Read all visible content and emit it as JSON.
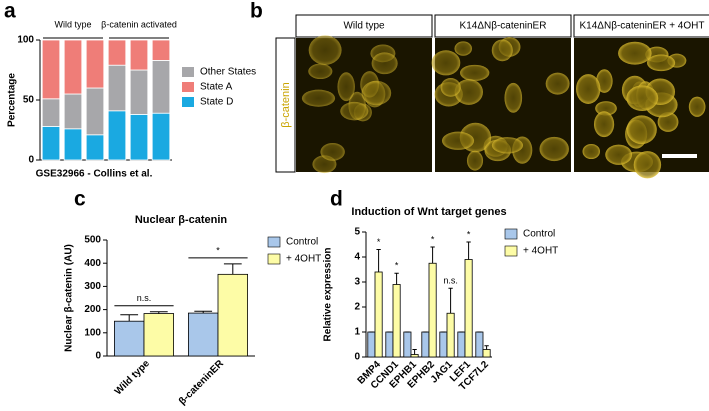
{
  "panel_labels": [
    "a",
    "b",
    "c",
    "d"
  ],
  "images": {
    "ylabel": "β-catenin",
    "titles": [
      "Wild type",
      "K14ΔNβ-cateninER",
      "K14ΔNβ-cateninER + 4OHT"
    ]
  },
  "chart_data": [
    {
      "type": "stacked_bar",
      "xlabel": "GSE32966 - Collins et al.",
      "ylabel": "Percentage",
      "groups": [
        "Wild type",
        "β-catenin activated"
      ],
      "categories": [
        null,
        null,
        null,
        null,
        null,
        null
      ],
      "series": [
        {
          "name": "Other States",
          "color": "#a7a7aa",
          "values": [
            23,
            29,
            39,
            38,
            37,
            44
          ]
        },
        {
          "name": "State A",
          "color": "#ef7d78",
          "values": [
            49,
            45,
            40,
            21,
            25,
            17
          ]
        },
        {
          "name": "State D",
          "color": "#1aa9e1",
          "values": [
            28,
            26,
            21,
            41,
            38,
            39
          ]
        }
      ],
      "ylim": [
        0,
        100
      ],
      "yticks": [
        0,
        50,
        100
      ]
    },
    {
      "type": "grouped_bar",
      "title": "Nuclear β-catenin",
      "ylabel": "Nuclear β-catenin (AU)",
      "categories": [
        "Wild type",
        "β-cateninER"
      ],
      "series": [
        {
          "name": "Control",
          "color": "#a9c7ea",
          "values": [
            150,
            185
          ],
          "errors": [
            28,
            8
          ]
        },
        {
          "name": "+ 4OHT",
          "color": "#fdfca6",
          "values": [
            183,
            352
          ],
          "errors": [
            8,
            45
          ]
        }
      ],
      "annotations": [
        "n.s.",
        "*"
      ],
      "ylim": [
        0,
        500
      ],
      "yticks": [
        0,
        100,
        200,
        300,
        400,
        500
      ]
    },
    {
      "type": "grouped_bar",
      "title": "Induction of Wnt target genes",
      "ylabel": "Relative expression",
      "categories": [
        "BMP4",
        "CCND1",
        "EPHB1",
        "EPHB2",
        "JAG1",
        "LEF1",
        "TCF7L2"
      ],
      "series": [
        {
          "name": "Control",
          "color": "#a9c7ea",
          "values": [
            1,
            1,
            1,
            1,
            1,
            1,
            1
          ],
          "errors": [
            0,
            0,
            0,
            0,
            0,
            0,
            0
          ]
        },
        {
          "name": "+ 4OHT",
          "color": "#fdfca6",
          "values": [
            3.4,
            2.9,
            0.1,
            3.75,
            1.75,
            3.9,
            0.3
          ],
          "errors": [
            0.9,
            0.45,
            0.2,
            0.65,
            1.0,
            0.7,
            0.15
          ]
        }
      ],
      "annotations": [
        "*",
        "*",
        null,
        "*",
        "n.s.",
        "*",
        null
      ],
      "ylim": [
        0,
        5
      ],
      "yticks": [
        0,
        1,
        2,
        3,
        4,
        5
      ]
    }
  ]
}
